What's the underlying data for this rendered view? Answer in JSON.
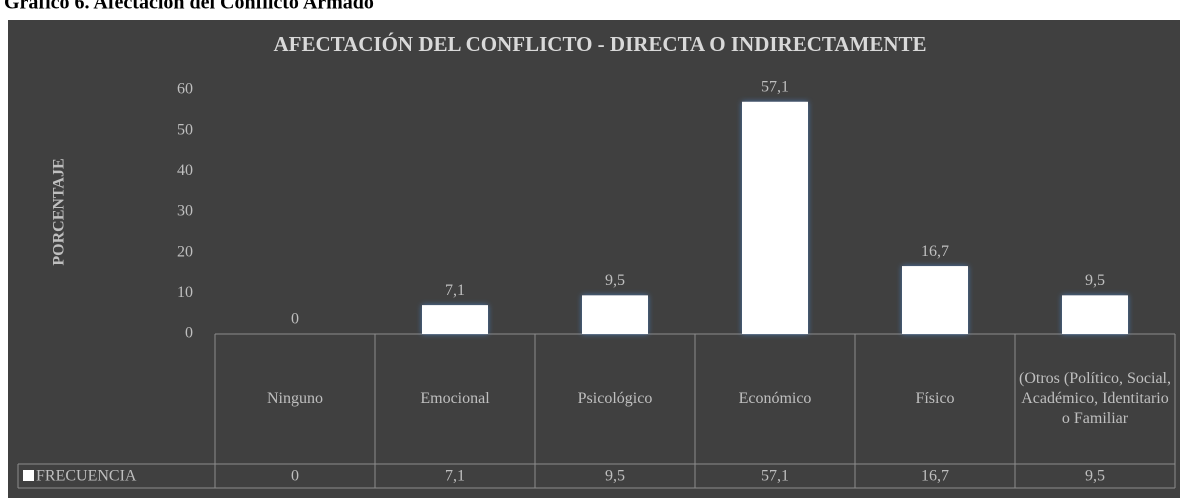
{
  "caption": "Gráfico 6. Afectación del Conflicto Armado",
  "chart_data": {
    "type": "bar",
    "title": "AFECTACIÓN DEL CONFLICTO - DIRECTA O INDIRECTAMENTE",
    "y_label": "PORCENTAJE",
    "categories": [
      "Ninguno",
      "Emocional",
      "Psicológico",
      "Económico",
      "Físico",
      "(Otros (Político, Social, Académico, Identitario o Familiar"
    ],
    "series": [
      {
        "name": "FRECUENCIA",
        "color": "#ffffff",
        "values": [
          0,
          7.1,
          9.5,
          57.1,
          16.7,
          9.5
        ],
        "value_labels": [
          "0",
          "7,1",
          "9,5",
          "57,1",
          "16,7",
          "9,5"
        ]
      }
    ],
    "ylim": [
      0,
      60
    ],
    "yticks": [
      0,
      10,
      20,
      30,
      40,
      50,
      60
    ],
    "grid": false,
    "data_table": true
  }
}
